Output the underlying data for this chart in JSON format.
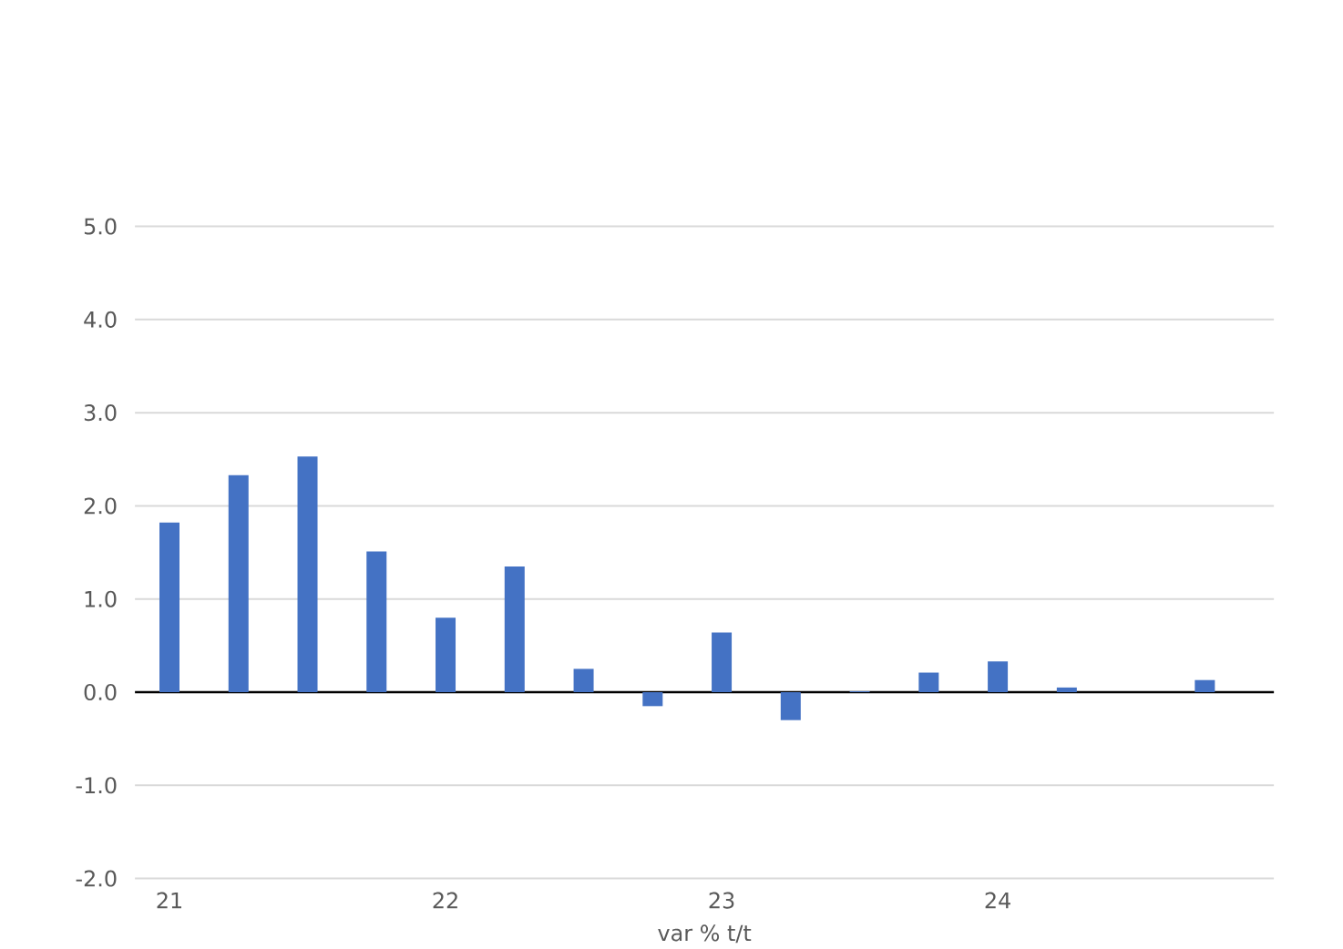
{
  "chart_data": {
    "type": "bar",
    "xlabel": "var % t/t",
    "categories": [
      "21",
      null,
      null,
      null,
      "22",
      null,
      null,
      null,
      "23",
      null,
      null,
      null,
      "24",
      null,
      null,
      null
    ],
    "values": [
      1.82,
      2.33,
      2.53,
      1.51,
      0.8,
      1.35,
      0.25,
      -0.15,
      0.64,
      -0.3,
      0.01,
      0.21,
      0.33,
      0.05,
      0.0,
      0.13
    ],
    "color": "#4472c4",
    "ylim": [
      -2,
      5
    ],
    "yticks": [
      {
        "value": -2,
        "label": "-2.0"
      },
      {
        "value": -1,
        "label": "-1.0"
      },
      {
        "value": 0,
        "label": "0.0"
      },
      {
        "value": 1,
        "label": "1.0"
      },
      {
        "value": 2,
        "label": "2.0"
      },
      {
        "value": 3,
        "label": "3.0"
      },
      {
        "value": 4,
        "label": "4.0"
      },
      {
        "value": 5,
        "label": "5.0"
      }
    ],
    "grid": "y"
  }
}
